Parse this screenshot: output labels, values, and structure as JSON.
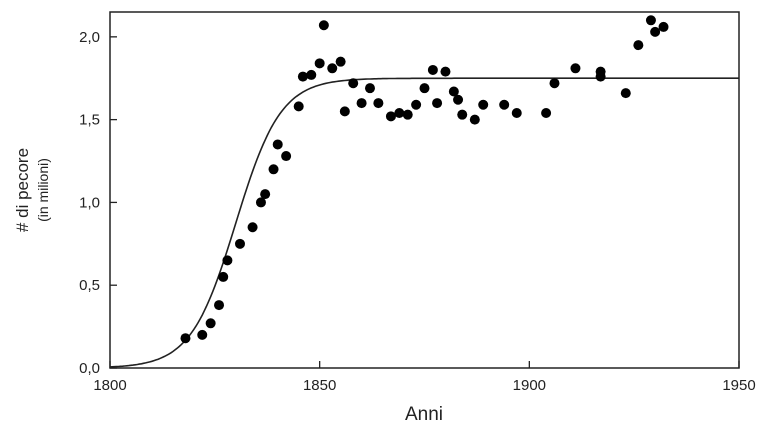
{
  "chart_data": {
    "type": "scatter",
    "title": "",
    "xlabel": "Anni",
    "ylabel": "# di pecore",
    "ylabel_sub": "(in milioni)",
    "xlim": [
      1800,
      1950
    ],
    "ylim": [
      0,
      2.15
    ],
    "xticks": [
      1800,
      1850,
      1900,
      1950
    ],
    "xtick_labels": [
      "1800",
      "1850",
      "1900",
      "1950"
    ],
    "yticks": [
      0,
      0.5,
      1.0,
      1.5,
      2.0
    ],
    "ytick_labels": [
      "0,0",
      "0,5",
      "1,0",
      "1,5",
      "2,0"
    ],
    "grid": false,
    "series": [
      {
        "kind": "points",
        "color": "#000000",
        "x": [
          1818,
          1822,
          1824,
          1826,
          1827,
          1828,
          1831,
          1834,
          1836,
          1837,
          1839,
          1840,
          1842,
          1845,
          1846,
          1848,
          1850,
          1851,
          1853,
          1855,
          1856,
          1858,
          1860,
          1862,
          1864,
          1867,
          1869,
          1871,
          1873,
          1875,
          1877,
          1878,
          1880,
          1882,
          1883,
          1884,
          1887,
          1889,
          1894,
          1897,
          1904,
          1906,
          1911,
          1917,
          1917,
          1923,
          1926,
          1929,
          1930,
          1932
        ],
        "y": [
          0.18,
          0.2,
          0.27,
          0.38,
          0.55,
          0.65,
          0.75,
          0.85,
          1.0,
          1.05,
          1.2,
          1.35,
          1.28,
          1.58,
          1.76,
          1.77,
          1.84,
          2.07,
          1.81,
          1.85,
          1.55,
          1.72,
          1.6,
          1.69,
          1.6,
          1.52,
          1.54,
          1.53,
          1.59,
          1.69,
          1.8,
          1.6,
          1.79,
          1.67,
          1.62,
          1.53,
          1.5,
          1.59,
          1.59,
          1.54,
          1.54,
          1.72,
          1.81,
          1.79,
          1.76,
          1.66,
          1.95,
          2.1,
          2.03,
          2.06
        ]
      },
      {
        "kind": "fit-curve",
        "color": "#222222",
        "model": "logistic",
        "K": 1.75,
        "r": 0.187,
        "x0": 1830
      }
    ]
  }
}
